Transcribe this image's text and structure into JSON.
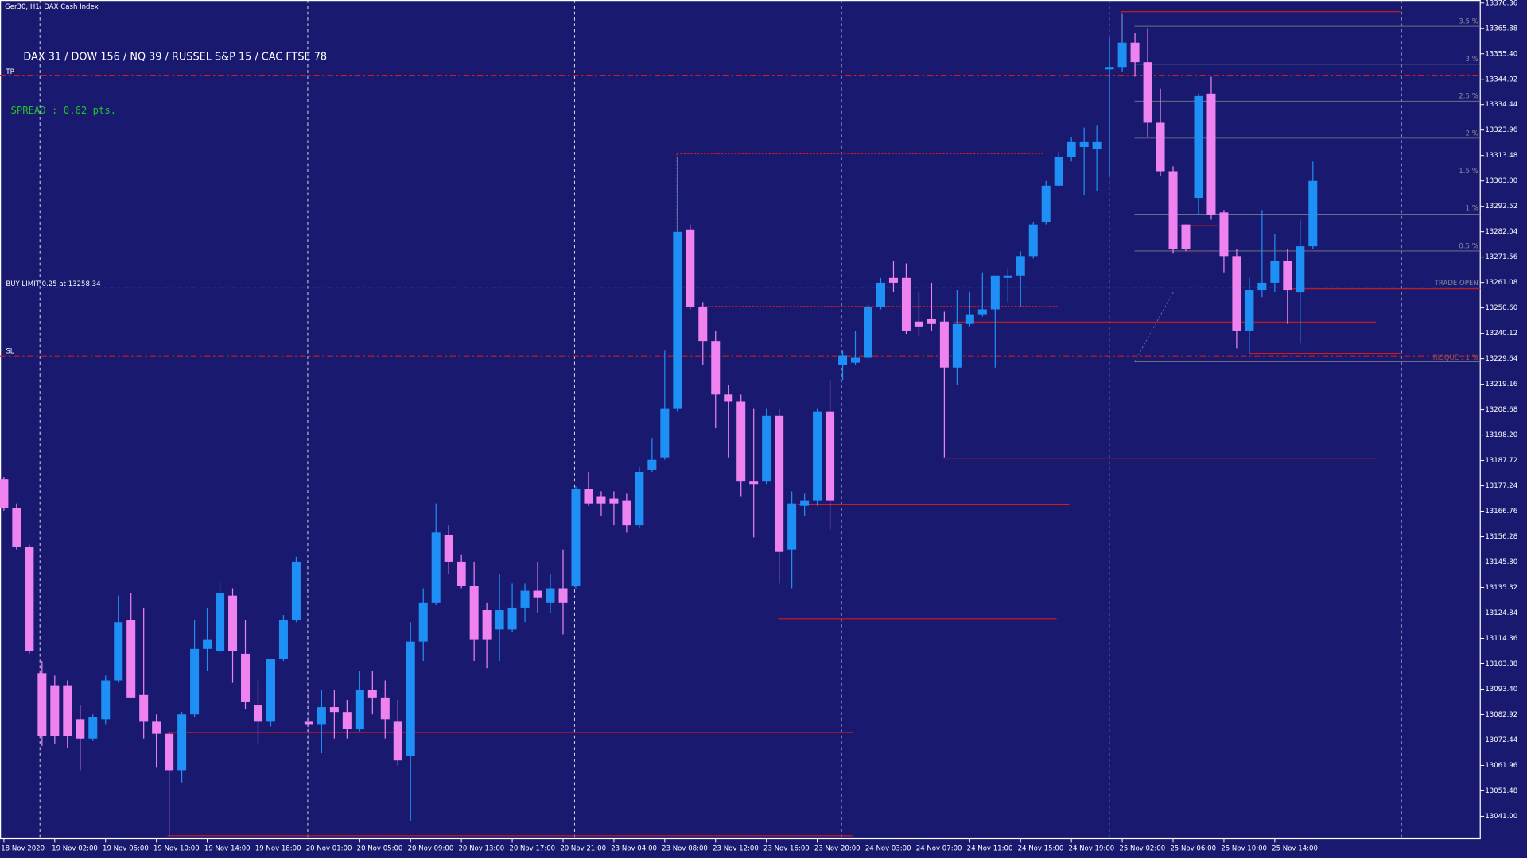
{
  "chart_data": {
    "type": "candlestick",
    "title": "Ger30, H1:  DAX Cash Index",
    "up_color": "#1e8ff5",
    "down_color": "#ee82ee",
    "categories": [
      "18 Nov 2020",
      null,
      null,
      null,
      "19 Nov 02:00",
      null,
      null,
      null,
      "19 Nov 06:00",
      null,
      null,
      null,
      "19 Nov 10:00",
      null,
      null,
      null,
      "19 Nov 14:00",
      null,
      null,
      null,
      "19 Nov 18:00",
      null,
      null,
      null,
      "20 Nov 01:00",
      null,
      null,
      null,
      "20 Nov 05:00",
      null,
      null,
      null,
      "20 Nov 09:00",
      null,
      null,
      null,
      "20 Nov 13:00",
      null,
      null,
      null,
      "20 Nov 17:00",
      null,
      null,
      null,
      "20 Nov 21:00",
      null,
      null,
      null,
      "23 Nov 04:00",
      null,
      null,
      null,
      "23 Nov 08:00",
      null,
      null,
      null,
      "23 Nov 12:00",
      null,
      null,
      null,
      "23 Nov 16:00",
      null,
      null,
      null,
      "23 Nov 20:00",
      null,
      null,
      null,
      "24 Nov 03:00",
      null,
      null,
      null,
      "24 Nov 07:00",
      null,
      null,
      null,
      "24 Nov 11:00",
      null,
      null,
      null,
      "24 Nov 15:00",
      null,
      null,
      null,
      "24 Nov 19:00",
      null,
      null,
      null,
      "25 Nov 02:00",
      null,
      null,
      null,
      "25 Nov 06:00",
      null,
      null,
      null,
      "25 Nov 10:00",
      null,
      null,
      null,
      "25 Nov 14:00",
      null,
      null,
      null
    ],
    "open": [
      13180,
      13168,
      13152,
      13100,
      13095,
      13095,
      13081,
      13073,
      13081,
      13097,
      13122,
      13091,
      13080,
      13075,
      13060,
      13083,
      13110,
      13109,
      13132,
      13108,
      13087,
      13080,
      13106,
      13122,
      13080,
      13079,
      13086,
      13084,
      13077,
      13093,
      13090,
      13080,
      13066,
      13113,
      13129,
      13157,
      13146,
      13136,
      13126,
      13118,
      13118,
      13127,
      13134,
      13129,
      13135,
      13136,
      13176,
      13173,
      13172,
      13171,
      13161,
      13184,
      13189,
      13209,
      13283,
      13251,
      13237,
      13215,
      13212,
      13179,
      13179,
      13206,
      13151,
      13169,
      13171,
      13208,
      13227,
      13228,
      13230,
      13251,
      13263,
      13263,
      13245,
      13246,
      13245,
      13226,
      13244,
      13248,
      13250,
      13263,
      13264,
      13272,
      13286,
      13301,
      13313,
      13317,
      13316,
      13349,
      13350,
      13360,
      13352,
      13327,
      13307,
      13285,
      13296,
      13339,
      13290,
      13272,
      13241,
      13258,
      13261,
      13270,
      13257,
      13276
    ],
    "high": [
      13181,
      13170,
      13153,
      13105,
      13099,
      13097,
      13087,
      13083,
      13099,
      13132,
      13133,
      13127,
      13083,
      13076,
      13084,
      13122,
      13127,
      13138,
      13135,
      13122,
      13097,
      13106,
      13124,
      13148,
      13093,
      13093,
      13093,
      13089,
      13101,
      13101,
      13097,
      13089,
      13121,
      13135,
      13170,
      13161,
      13149,
      13146,
      13129,
      13141,
      13137,
      13137,
      13146,
      13141,
      13151,
      13177,
      13183,
      13175,
      13175,
      13174,
      13185,
      13197,
      13233,
      13313,
      13285,
      13253,
      13241,
      13219,
      13215,
      13209,
      13209,
      13209,
      13175,
      13174,
      13209,
      13221,
      13233,
      13241,
      13252,
      13263,
      13270,
      13269,
      13257,
      13261,
      13249,
      13258,
      13257,
      13265,
      13264,
      13267,
      13274,
      13286,
      13303,
      13315,
      13321,
      13325,
      13326,
      13362,
      13372,
      13364,
      13366,
      13341,
      13309,
      13285,
      13339,
      13346,
      13291,
      13275,
      13263,
      13291,
      13281,
      13275,
      13287,
      13311
    ],
    "low": [
      13167,
      13151,
      13108,
      13070,
      13071,
      13069,
      13060,
      13072,
      13079,
      13096,
      13090,
      13073,
      13061,
      13033,
      13055,
      13082,
      13101,
      13108,
      13096,
      13085,
      13071,
      13078,
      13105,
      13121,
      13069,
      13067,
      13073,
      13073,
      13076,
      13083,
      13073,
      13062,
      13039,
      13105,
      13128,
      13141,
      13135,
      13105,
      13102,
      13105,
      13117,
      13121,
      13125,
      13125,
      13116,
      13135,
      13169,
      13165,
      13161,
      13158,
      13160,
      13183,
      13188,
      13208,
      13250,
      13227,
      13201,
      13189,
      13173,
      13156,
      13178,
      13137,
      13135,
      13165,
      13169,
      13159,
      13221,
      13227,
      13229,
      13250,
      13257,
      13240,
      13239,
      13241,
      13189,
      13219,
      13243,
      13247,
      13226,
      13253,
      13251,
      13271,
      13285,
      13301,
      13311,
      13297,
      13299,
      13305,
      13348,
      13346,
      13321,
      13305,
      13273,
      13274,
      13289,
      13287,
      13265,
      13234,
      13232,
      13255,
      13257,
      13244,
      13236,
      13275
    ],
    "close": [
      13168,
      13152,
      13109,
      13074,
      13074,
      13074,
      13073,
      13082,
      13097,
      13121,
      13090,
      13080,
      13075,
      13060,
      13083,
      13110,
      13114,
      13133,
      13109,
      13088,
      13080,
      13106,
      13122,
      13146,
      13079,
      13086,
      13084,
      13077,
      13093,
      13090,
      13081,
      13064,
      13113,
      13129,
      13158,
      13146,
      13136,
      13114,
      13114,
      13126,
      13127,
      13134,
      13131,
      13135,
      13129,
      13176,
      13170,
      13170,
      13170,
      13161,
      13183,
      13188,
      13209,
      13282,
      13251,
      13237,
      13215,
      13212,
      13179,
      13178,
      13206,
      13150,
      13170,
      13171,
      13208,
      13171,
      13231,
      13230,
      13251,
      13261,
      13261,
      13241,
      13243,
      13244,
      13226,
      13244,
      13248,
      13250,
      13264,
      13264,
      13272,
      13285,
      13301,
      13313,
      13319,
      13319,
      13319,
      13350,
      13360,
      13352,
      13327,
      13307,
      13275,
      13275,
      13338,
      13289,
      13272,
      13241,
      13258,
      13261,
      13270,
      13258,
      13276,
      13303
    ],
    "ylim": [
      13031.8,
      13377.6
    ],
    "yticks": [
      13376.36,
      13365.88,
      {
        "value": 13355.4,
        "label": "13355.40"
      },
      13344.92,
      13334.44,
      13323.96,
      13313.48,
      {
        "value": 13303,
        "label": "13303.00"
      },
      13292.52,
      13282.04,
      13271.56,
      13261.08,
      {
        "value": 13250.6,
        "label": "13250.60"
      },
      13240.12,
      13229.64,
      13219.16,
      13208.68,
      {
        "value": 13198.2,
        "label": "13198.20"
      },
      13187.72,
      13177.24,
      13166.76,
      13156.28,
      {
        "value": 13145.8,
        "label": "13145.80"
      },
      13135.32,
      13124.84,
      13114.36,
      13103.88,
      {
        "value": 13093.4,
        "label": "13093.40"
      },
      13082.92,
      13072.44,
      13061.96,
      13051.48,
      {
        "value": 13041,
        "label": "13041.00"
      }
    ],
    "annotations": {
      "markets": "DAX 31 / DOW 156 / NQ 39 / RUSSEL S&P 15 / CAC FTSE 78",
      "spread": "SPREAD : 0.62 pts.",
      "tp": "TP",
      "sl": "SL",
      "buy_limit": "BUY LIMIT 0.25 at 13258.34",
      "trade_open": "TRADE OPEN",
      "risk": "RISQUE : 1 %",
      "levels": [
        "3.5 %",
        "3 %",
        "2.5 %",
        "2 %",
        "1.5 %",
        "1 %",
        "0.5 %"
      ]
    }
  }
}
